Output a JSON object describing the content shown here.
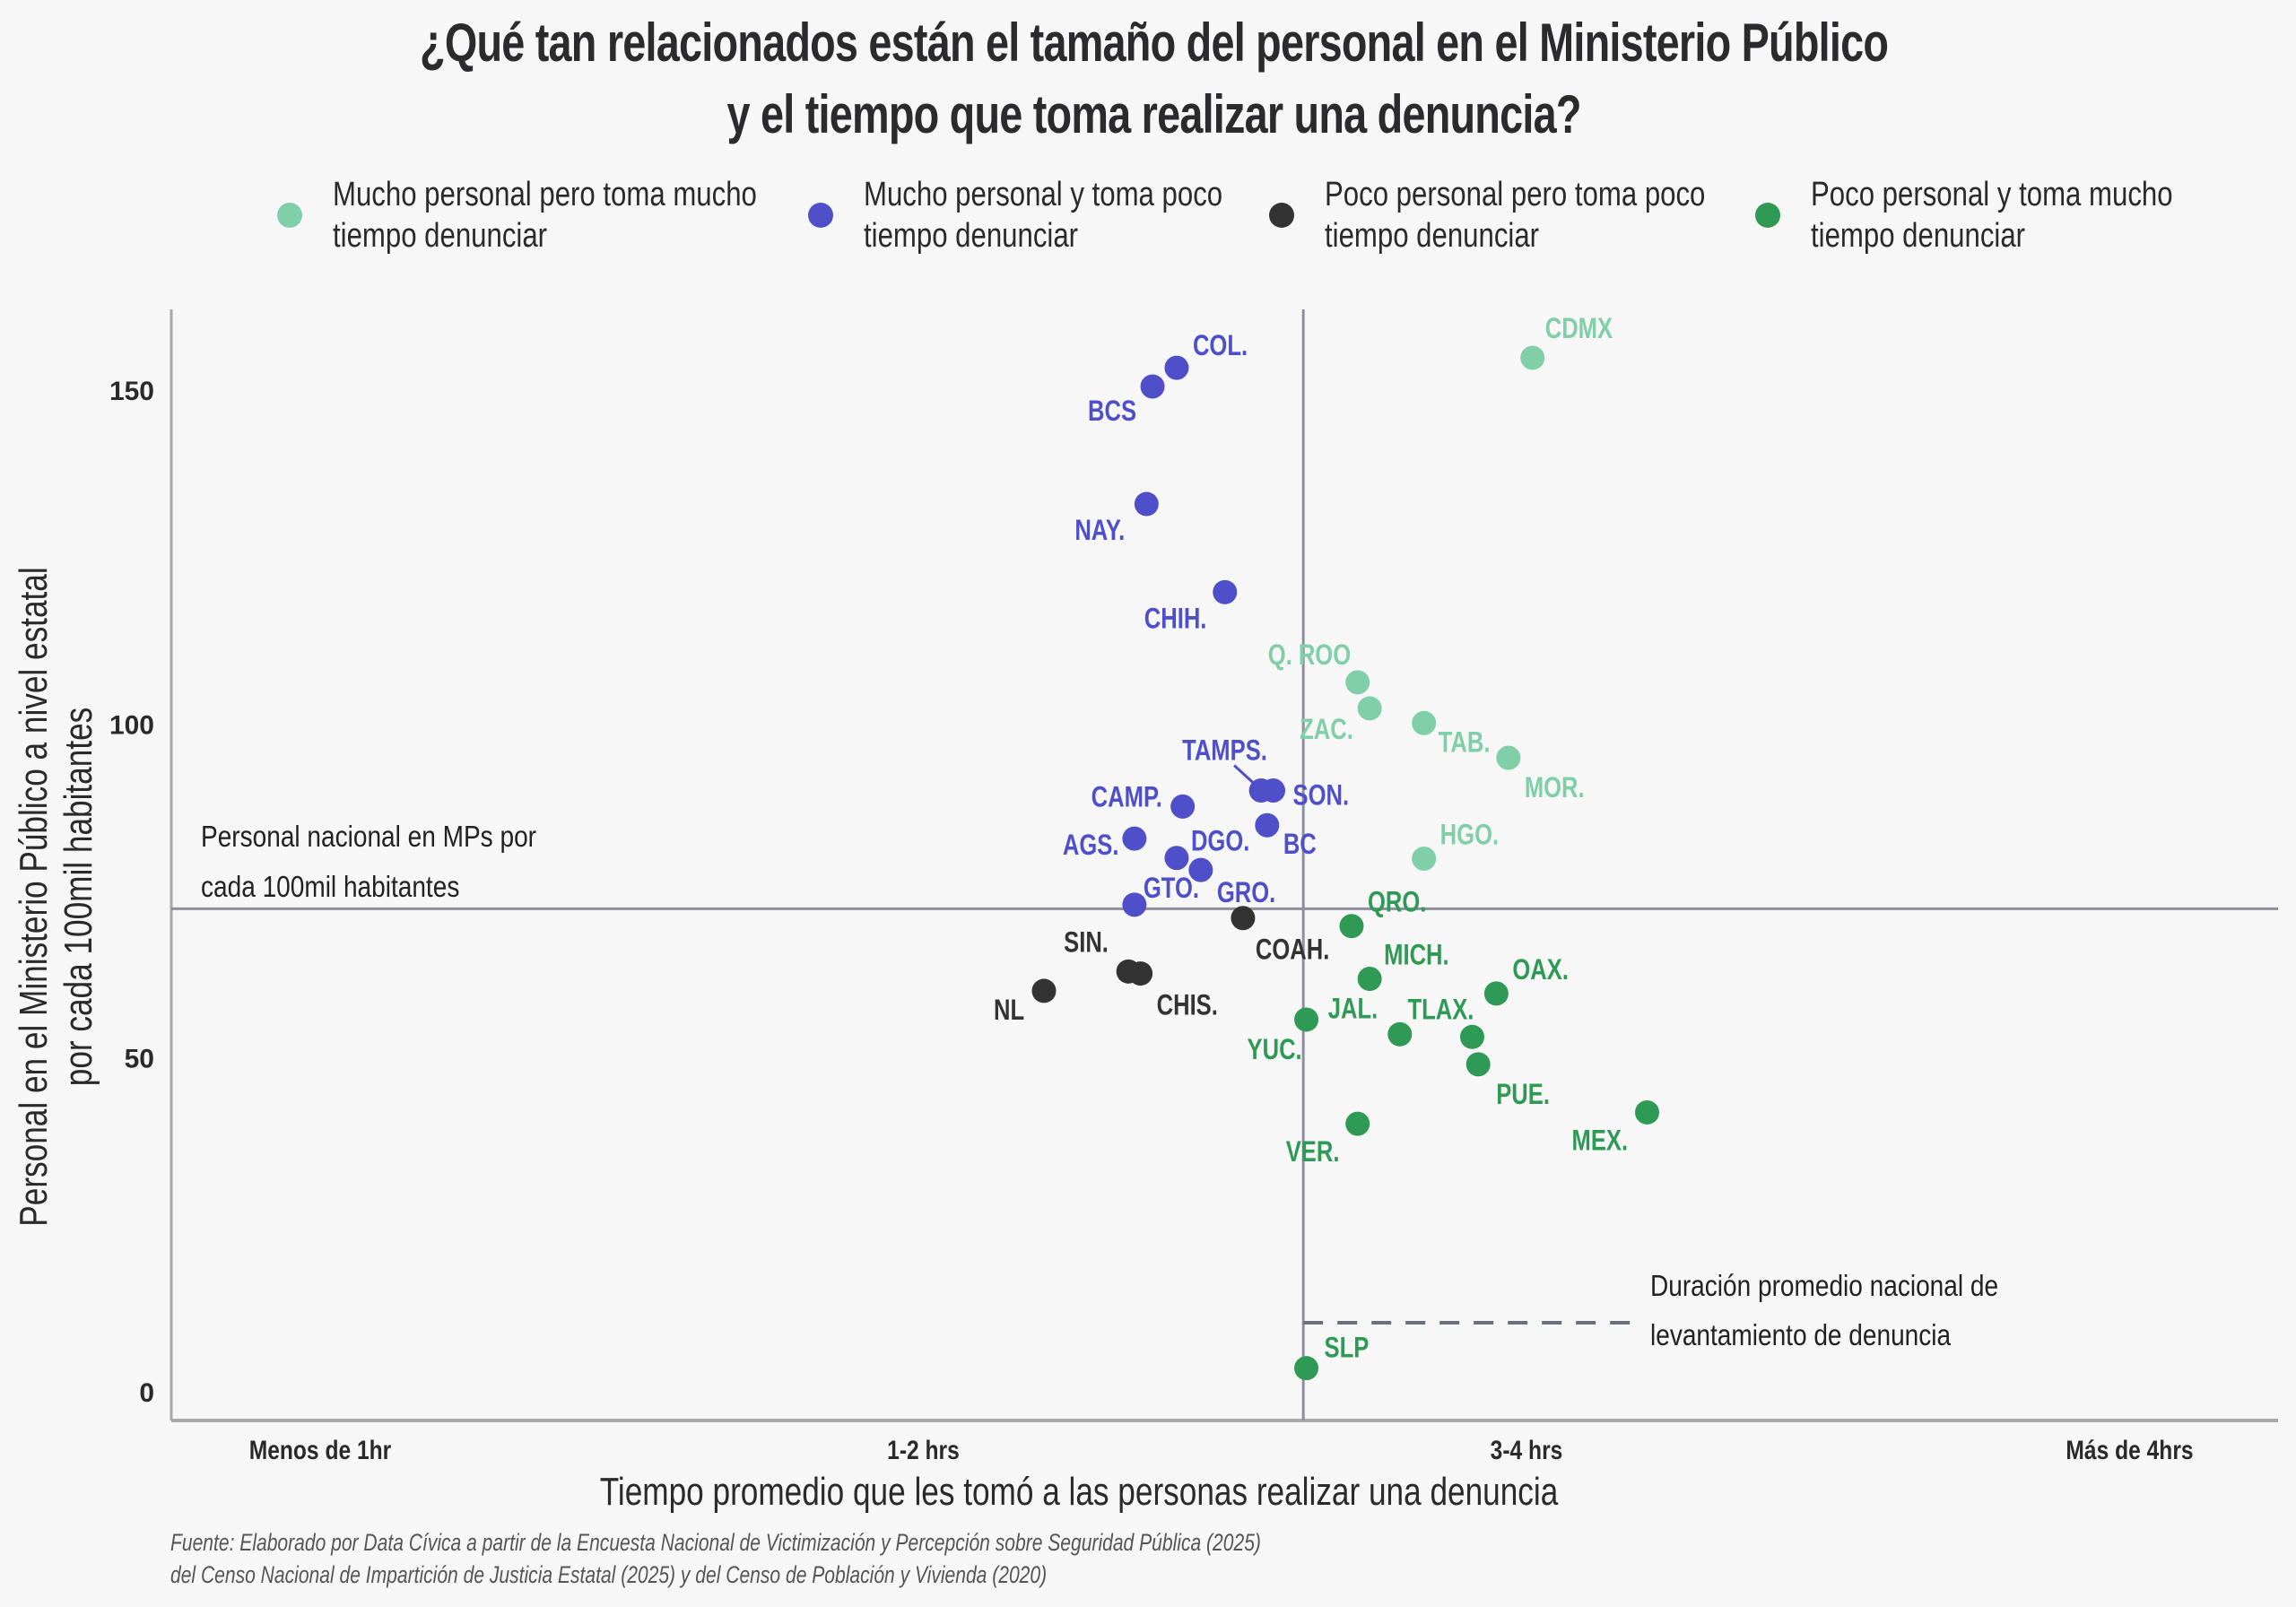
{
  "title": {
    "line1": "¿Qué tan relacionados están el tamaño del personal en el Ministerio Público",
    "line2": "y el tiempo que toma realizar una denuncia?"
  },
  "colors": {
    "background": "#f7f7f7",
    "mucho_mucho": "#80cfa9",
    "mucho_poco": "#4f4fc9",
    "poco_poco": "#333333",
    "poco_mucho": "#2f9a55",
    "refline": "#8e8e9c",
    "axis": "#a8a8a8"
  },
  "legend": [
    {
      "key": "mucho_mucho",
      "label": "Mucho personal pero toma mucho\ntiempo denunciar"
    },
    {
      "key": "mucho_poco",
      "label": "Mucho personal y toma poco\ntiempo denunciar"
    },
    {
      "key": "poco_poco",
      "label": "Poco personal pero toma poco\ntiempo denunciar"
    },
    {
      "key": "poco_mucho",
      "label": "Poco personal y toma mucho\ntiempo denunciar"
    }
  ],
  "annotations": {
    "hline_label_1": "Personal nacional en MPs por",
    "hline_label_2": "cada 100mil habitantes",
    "vline_label_1": "Duración promedio nacional de",
    "vline_label_2": "levantamiento de denuncia"
  },
  "source": "Fuente: Elaborado por Data Cívica a partir de la Encuesta Nacional de Victimización y Percepción sobre Seguridad Pública (2025)\n del Censo Nacional de Impartición de Justicia Estatal (2025) y del Censo de Población y Vivienda (2020)",
  "chart_data": {
    "type": "scatter",
    "title": "¿Qué tan relacionados están el tamaño del personal en el Ministerio Público y el tiempo que toma realizar una denuncia?",
    "xlabel": "Tiempo promedio que les tomó a las personas realizar una denuncia",
    "ylabel_line1": "Personal en el Ministerio Público a nivel estatal",
    "ylabel_line2": "por cada 100mil habitantes",
    "x_ticks": [
      "Menos de 1hr",
      "1-2 hrs",
      "3-4 hrs",
      "Más de 4hrs"
    ],
    "x_tick_values": [
      0,
      1,
      2,
      3
    ],
    "xlim": [
      -0.25,
      3.24
    ],
    "y_ticks": [
      0,
      50,
      100,
      150
    ],
    "ylim": [
      -4.5,
      162
    ],
    "grid": false,
    "legend_position": "top",
    "reference_lines": {
      "national_staff_per_100k": 72.2,
      "national_avg_time": 1.63
    },
    "points": [
      {
        "label": "CDMX",
        "x": 2.01,
        "y": 154.7,
        "group": "mucho_mucho",
        "lx": 14,
        "ly": -22
      },
      {
        "label": "Q. ROO",
        "x": 1.72,
        "y": 106.1,
        "group": "mucho_mucho",
        "lx": -100,
        "ly": -20
      },
      {
        "label": "ZAC.",
        "x": 1.74,
        "y": 102.2,
        "group": "mucho_mucho",
        "lx": -78,
        "ly": 34
      },
      {
        "label": "TAB.",
        "x": 1.83,
        "y": 100.0,
        "group": "mucho_mucho",
        "lx": 16,
        "ly": 32
      },
      {
        "label": "MOR.",
        "x": 1.97,
        "y": 94.8,
        "group": "mucho_mucho",
        "lx": 18,
        "ly": 44
      },
      {
        "label": "HGO.",
        "x": 1.83,
        "y": 79.7,
        "group": "mucho_mucho",
        "lx": 18,
        "ly": -16
      },
      {
        "label": "COL.",
        "x": 1.42,
        "y": 153.2,
        "group": "mucho_poco",
        "lx": 18,
        "ly": -14
      },
      {
        "label": "BCS",
        "x": 1.38,
        "y": 150.4,
        "group": "mucho_poco",
        "lx": -72,
        "ly": 38
      },
      {
        "label": "NAY.",
        "x": 1.37,
        "y": 132.8,
        "group": "mucho_poco",
        "lx": -80,
        "ly": 40
      },
      {
        "label": "CHIH.",
        "x": 1.5,
        "y": 119.6,
        "group": "mucho_poco",
        "lx": -90,
        "ly": 40
      },
      {
        "label": "TAMPS.",
        "x": 1.56,
        "y": 89.9,
        "group": "mucho_poco",
        "lx": -88,
        "ly": -34
      },
      {
        "label": "SON.",
        "x": 1.58,
        "y": 89.9,
        "group": "mucho_poco",
        "lx": 22,
        "ly": 16
      },
      {
        "label": "CAMP.",
        "x": 1.43,
        "y": 87.5,
        "group": "mucho_poco",
        "lx": -102,
        "ly": 0
      },
      {
        "label": "BC",
        "x": 1.57,
        "y": 84.7,
        "group": "mucho_poco",
        "lx": 18,
        "ly": 32
      },
      {
        "label": "AGS.",
        "x": 1.35,
        "y": 82.7,
        "group": "mucho_poco",
        "lx": -80,
        "ly": 18
      },
      {
        "label": "DGO.",
        "x": 1.42,
        "y": 79.8,
        "group": "mucho_poco",
        "lx": 16,
        "ly": -8
      },
      {
        "label": "GRO.",
        "x": 1.46,
        "y": 78.0,
        "group": "mucho_poco",
        "lx": 18,
        "ly": 36
      },
      {
        "label": "GTO.",
        "x": 1.35,
        "y": 72.8,
        "group": "mucho_poco",
        "lx": 10,
        "ly": -8
      },
      {
        "label": "COAH.",
        "x": 1.53,
        "y": 70.8,
        "group": "poco_poco",
        "lx": 14,
        "ly": 46
      },
      {
        "label": "SIN.",
        "x": 1.34,
        "y": 62.8,
        "group": "poco_poco",
        "lx": -72,
        "ly": -22
      },
      {
        "label": "CHIS.",
        "x": 1.36,
        "y": 62.5,
        "group": "poco_poco",
        "lx": 18,
        "ly": 46
      },
      {
        "label": "NL",
        "x": 1.2,
        "y": 59.9,
        "group": "poco_poco",
        "lx": -56,
        "ly": 32
      },
      {
        "label": "QRO.",
        "x": 1.71,
        "y": 69.6,
        "group": "poco_mucho",
        "lx": 18,
        "ly": -16
      },
      {
        "label": "MICH.",
        "x": 1.74,
        "y": 61.7,
        "group": "poco_mucho",
        "lx": 16,
        "ly": -16
      },
      {
        "label": "OAX.",
        "x": 1.95,
        "y": 59.5,
        "group": "poco_mucho",
        "lx": 18,
        "ly": -16
      },
      {
        "label": "YUC.",
        "x": 1.635,
        "y": 55.6,
        "group": "poco_mucho",
        "lx": -66,
        "ly": 44
      },
      {
        "label": "JAL.",
        "x": 1.79,
        "y": 53.4,
        "group": "poco_mucho",
        "lx": -80,
        "ly": -18
      },
      {
        "label": "TLAX.",
        "x": 1.91,
        "y": 53.0,
        "group": "poco_mucho",
        "lx": -72,
        "ly": -20
      },
      {
        "label": "PUE.",
        "x": 1.92,
        "y": 48.9,
        "group": "poco_mucho",
        "lx": 20,
        "ly": 44
      },
      {
        "label": "MEX.",
        "x": 2.2,
        "y": 41.7,
        "group": "poco_mucho",
        "lx": -84,
        "ly": 42
      },
      {
        "label": "VER.",
        "x": 1.72,
        "y": 40.0,
        "group": "poco_mucho",
        "lx": -80,
        "ly": 42
      },
      {
        "label": "SLP",
        "x": 1.635,
        "y": 3.4,
        "group": "poco_mucho",
        "lx": 20,
        "ly": -12
      }
    ]
  }
}
